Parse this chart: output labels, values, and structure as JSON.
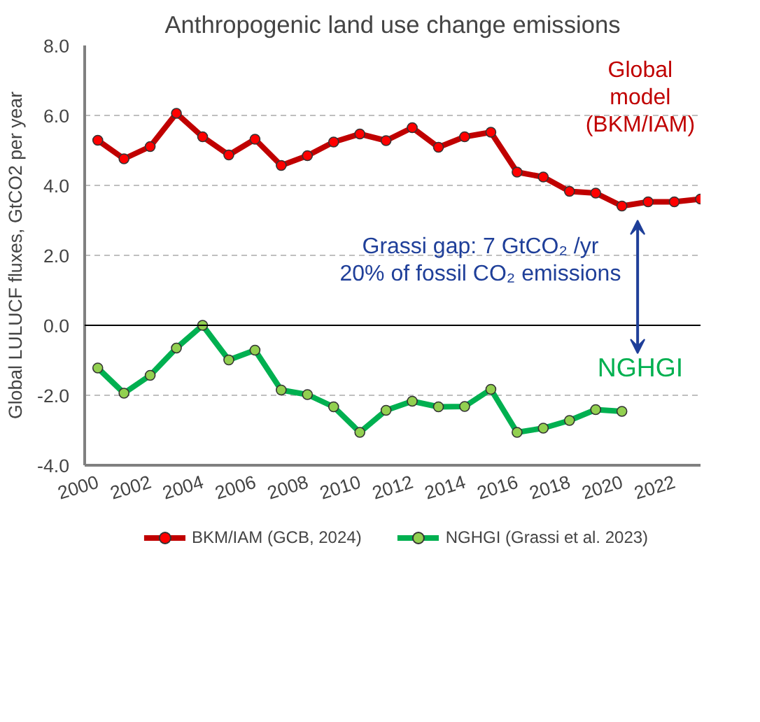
{
  "chart_data": {
    "type": "line",
    "title": "Anthropogenic land use change emissions",
    "ylabel": "Global LULUCF fluxes, GtCO2 per year",
    "x": [
      2000,
      2001,
      2002,
      2003,
      2004,
      2005,
      2006,
      2007,
      2008,
      2009,
      2010,
      2011,
      2012,
      2013,
      2014,
      2015,
      2016,
      2017,
      2018,
      2019,
      2020,
      2021,
      2022,
      2023
    ],
    "series": [
      {
        "name": "BKM/IAM (GCB, 2024)",
        "color": "#c00000",
        "values": [
          5.29,
          4.76,
          5.11,
          6.06,
          5.39,
          4.87,
          5.32,
          4.57,
          4.85,
          5.24,
          5.47,
          5.28,
          5.65,
          5.09,
          5.39,
          5.52,
          4.38,
          4.24,
          3.83,
          3.78,
          3.41,
          3.53,
          3.53,
          3.61
        ]
      },
      {
        "name": "NGHGI (Grassi et al. 2023)",
        "color": "#00b050",
        "values": [
          -1.22,
          -1.94,
          -1.43,
          -0.65,
          0.0,
          -0.99,
          -0.71,
          -1.85,
          -1.98,
          -2.33,
          -3.06,
          -2.43,
          -2.17,
          -2.33,
          -2.32,
          -1.83,
          -3.06,
          -2.94,
          -2.72,
          -2.41,
          -2.46,
          null,
          null,
          null
        ]
      }
    ],
    "annotations": [
      "Global\nmodel\n(BKM/IAM)",
      "NGHGI",
      "Grassi gap: 7 GtCO₂ /yr\n20% of fossil CO₂ emissions"
    ],
    "xlim": [
      1999.5,
      2023
    ],
    "xticks": [
      2000,
      2002,
      2004,
      2006,
      2008,
      2010,
      2012,
      2014,
      2016,
      2018,
      2020,
      2022
    ],
    "ylim": [
      -4,
      8
    ],
    "yticks": [
      {
        "value": -4,
        "label": "-4.0"
      },
      {
        "value": -2,
        "label": "-2.0"
      },
      {
        "value": 0,
        "label": "0.0"
      },
      {
        "value": 2,
        "label": "2.0"
      },
      {
        "value": 4,
        "label": "4.0"
      },
      {
        "value": 6,
        "label": "6.0"
      },
      {
        "value": 8,
        "label": "8.0"
      }
    ],
    "ref_lines": [
      {
        "axis": "y",
        "value": 0,
        "color": "#000000"
      }
    ],
    "grid": "y",
    "legend": "bottom",
    "marker": "circle",
    "line_style": "solid"
  }
}
